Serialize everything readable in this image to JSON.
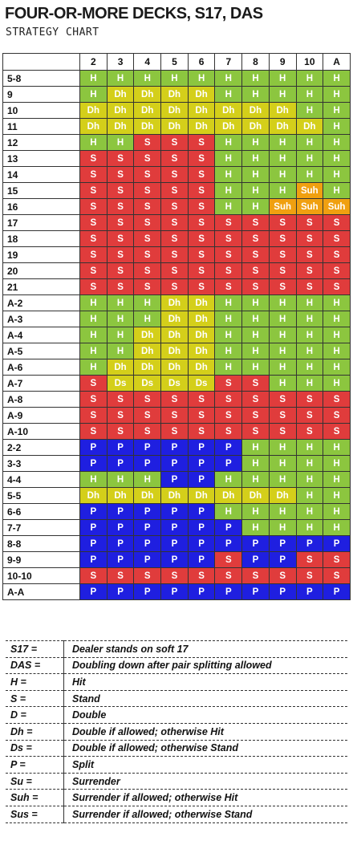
{
  "header": {
    "title": "FOUR-OR-MORE DECKS, S17, DAS",
    "subtitle": "STRATEGY CHART"
  },
  "chart": {
    "dealer_cards": [
      "2",
      "3",
      "4",
      "5",
      "6",
      "7",
      "8",
      "9",
      "10",
      "A"
    ],
    "rows": [
      {
        "hand": "5-8",
        "actions": [
          "H",
          "H",
          "H",
          "H",
          "H",
          "H",
          "H",
          "H",
          "H",
          "H"
        ]
      },
      {
        "hand": "9",
        "actions": [
          "H",
          "Dh",
          "Dh",
          "Dh",
          "Dh",
          "H",
          "H",
          "H",
          "H",
          "H"
        ]
      },
      {
        "hand": "10",
        "actions": [
          "Dh",
          "Dh",
          "Dh",
          "Dh",
          "Dh",
          "Dh",
          "Dh",
          "Dh",
          "H",
          "H"
        ]
      },
      {
        "hand": "11",
        "actions": [
          "Dh",
          "Dh",
          "Dh",
          "Dh",
          "Dh",
          "Dh",
          "Dh",
          "Dh",
          "Dh",
          "H"
        ]
      },
      {
        "hand": "12",
        "actions": [
          "H",
          "H",
          "S",
          "S",
          "S",
          "H",
          "H",
          "H",
          "H",
          "H"
        ]
      },
      {
        "hand": "13",
        "actions": [
          "S",
          "S",
          "S",
          "S",
          "S",
          "H",
          "H",
          "H",
          "H",
          "H"
        ]
      },
      {
        "hand": "14",
        "actions": [
          "S",
          "S",
          "S",
          "S",
          "S",
          "H",
          "H",
          "H",
          "H",
          "H"
        ]
      },
      {
        "hand": "15",
        "actions": [
          "S",
          "S",
          "S",
          "S",
          "S",
          "H",
          "H",
          "H",
          "Suh",
          "H"
        ]
      },
      {
        "hand": "16",
        "actions": [
          "S",
          "S",
          "S",
          "S",
          "S",
          "H",
          "H",
          "Suh",
          "Suh",
          "Suh"
        ]
      },
      {
        "hand": "17",
        "actions": [
          "S",
          "S",
          "S",
          "S",
          "S",
          "S",
          "S",
          "S",
          "S",
          "S"
        ]
      },
      {
        "hand": "18",
        "actions": [
          "S",
          "S",
          "S",
          "S",
          "S",
          "S",
          "S",
          "S",
          "S",
          "S"
        ]
      },
      {
        "hand": "19",
        "actions": [
          "S",
          "S",
          "S",
          "S",
          "S",
          "S",
          "S",
          "S",
          "S",
          "S"
        ]
      },
      {
        "hand": "20",
        "actions": [
          "S",
          "S",
          "S",
          "S",
          "S",
          "S",
          "S",
          "S",
          "S",
          "S"
        ]
      },
      {
        "hand": "21",
        "actions": [
          "S",
          "S",
          "S",
          "S",
          "S",
          "S",
          "S",
          "S",
          "S",
          "S"
        ]
      },
      {
        "hand": "A-2",
        "actions": [
          "H",
          "H",
          "H",
          "Dh",
          "Dh",
          "H",
          "H",
          "H",
          "H",
          "H"
        ]
      },
      {
        "hand": "A-3",
        "actions": [
          "H",
          "H",
          "H",
          "Dh",
          "Dh",
          "H",
          "H",
          "H",
          "H",
          "H"
        ]
      },
      {
        "hand": "A-4",
        "actions": [
          "H",
          "H",
          "Dh",
          "Dh",
          "Dh",
          "H",
          "H",
          "H",
          "H",
          "H"
        ]
      },
      {
        "hand": "A-5",
        "actions": [
          "H",
          "H",
          "Dh",
          "Dh",
          "Dh",
          "H",
          "H",
          "H",
          "H",
          "H"
        ]
      },
      {
        "hand": "A-6",
        "actions": [
          "H",
          "Dh",
          "Dh",
          "Dh",
          "Dh",
          "H",
          "H",
          "H",
          "H",
          "H"
        ]
      },
      {
        "hand": "A-7",
        "actions": [
          "S",
          "Ds",
          "Ds",
          "Ds",
          "Ds",
          "S",
          "S",
          "H",
          "H",
          "H"
        ]
      },
      {
        "hand": "A-8",
        "actions": [
          "S",
          "S",
          "S",
          "S",
          "S",
          "S",
          "S",
          "S",
          "S",
          "S"
        ]
      },
      {
        "hand": "A-9",
        "actions": [
          "S",
          "S",
          "S",
          "S",
          "S",
          "S",
          "S",
          "S",
          "S",
          "S"
        ]
      },
      {
        "hand": "A-10",
        "actions": [
          "S",
          "S",
          "S",
          "S",
          "S",
          "S",
          "S",
          "S",
          "S",
          "S"
        ]
      },
      {
        "hand": "2-2",
        "actions": [
          "P",
          "P",
          "P",
          "P",
          "P",
          "P",
          "H",
          "H",
          "H",
          "H"
        ]
      },
      {
        "hand": "3-3",
        "actions": [
          "P",
          "P",
          "P",
          "P",
          "P",
          "P",
          "H",
          "H",
          "H",
          "H"
        ]
      },
      {
        "hand": "4-4",
        "actions": [
          "H",
          "H",
          "H",
          "P",
          "P",
          "H",
          "H",
          "H",
          "H",
          "H"
        ]
      },
      {
        "hand": "5-5",
        "actions": [
          "Dh",
          "Dh",
          "Dh",
          "Dh",
          "Dh",
          "Dh",
          "Dh",
          "Dh",
          "H",
          "H"
        ]
      },
      {
        "hand": "6-6",
        "actions": [
          "P",
          "P",
          "P",
          "P",
          "P",
          "H",
          "H",
          "H",
          "H",
          "H"
        ]
      },
      {
        "hand": "7-7",
        "actions": [
          "P",
          "P",
          "P",
          "P",
          "P",
          "P",
          "H",
          "H",
          "H",
          "H"
        ]
      },
      {
        "hand": "8-8",
        "actions": [
          "P",
          "P",
          "P",
          "P",
          "P",
          "P",
          "P",
          "P",
          "P",
          "P"
        ]
      },
      {
        "hand": "9-9",
        "actions": [
          "P",
          "P",
          "P",
          "P",
          "P",
          "S",
          "P",
          "P",
          "S",
          "S"
        ]
      },
      {
        "hand": "10-10",
        "actions": [
          "S",
          "S",
          "S",
          "S",
          "S",
          "S",
          "S",
          "S",
          "S",
          "S"
        ]
      },
      {
        "hand": "A-A",
        "actions": [
          "P",
          "P",
          "P",
          "P",
          "P",
          "P",
          "P",
          "P",
          "P",
          "P"
        ]
      }
    ],
    "colors": {
      "H": "#8cc63f",
      "S": "#e03c3c",
      "Dh": "#d4cf1a",
      "Ds": "#d4cf1a",
      "P": "#1f1fe0",
      "Suh": "#f0a010"
    }
  },
  "legend": [
    {
      "key": "S17 =",
      "text": "Dealer stands on soft 17"
    },
    {
      "key": "DAS =",
      "text": "Doubling down after pair splitting allowed"
    },
    {
      "key": "H =",
      "text": "Hit"
    },
    {
      "key": "S =",
      "text": "Stand"
    },
    {
      "key": "D =",
      "text": "Double"
    },
    {
      "key": "Dh =",
      "text": "Double if allowed; otherwise Hit"
    },
    {
      "key": "Ds =",
      "text": "Double if allowed; otherwise Stand"
    },
    {
      "key": "P =",
      "text": "Split"
    },
    {
      "key": "Su =",
      "text": "Surrender"
    },
    {
      "key": "Suh =",
      "text": "Surrender if allowed; otherwise Hit"
    },
    {
      "key": "Sus =",
      "text": "Surrender if allowed; otherwise Stand"
    }
  ]
}
